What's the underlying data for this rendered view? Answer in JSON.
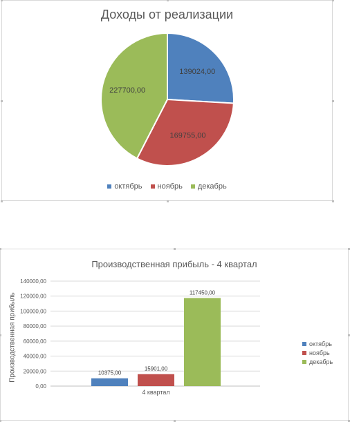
{
  "chart_data": [
    {
      "type": "pie",
      "title": "Доходы от реализации",
      "categories": [
        "октябрь",
        "ноябрь",
        "декабрь"
      ],
      "values": [
        139024,
        169755,
        227700
      ],
      "labels": [
        "139024,00",
        "169755,00",
        "227700,00"
      ],
      "colors": [
        "#4f81bd",
        "#c0504d",
        "#9bbb59"
      ],
      "legend_position": "bottom"
    },
    {
      "type": "bar",
      "title": "Производственная прибыль - 4 квартал",
      "ylabel": "Производственная прибыль",
      "xlabel": "",
      "categories": [
        "4 квартал"
      ],
      "series": [
        {
          "name": "октябрь",
          "values": [
            10375
          ],
          "label": "10375,00",
          "color": "#4f81bd"
        },
        {
          "name": "ноябрь",
          "values": [
            15901
          ],
          "label": "15901,00",
          "color": "#c0504d"
        },
        {
          "name": "декабрь",
          "values": [
            117450
          ],
          "label": "117450,00",
          "color": "#9bbb59"
        }
      ],
      "ylim": [
        0,
        140000
      ],
      "yticks": [
        0,
        20000,
        40000,
        60000,
        80000,
        100000,
        120000,
        140000
      ],
      "ytick_labels": [
        "0,00",
        "20000,00",
        "40000,00",
        "60000,00",
        "80000,00",
        "100000,00",
        "120000,00",
        "140000,00"
      ],
      "grid": true,
      "legend_position": "right"
    }
  ]
}
